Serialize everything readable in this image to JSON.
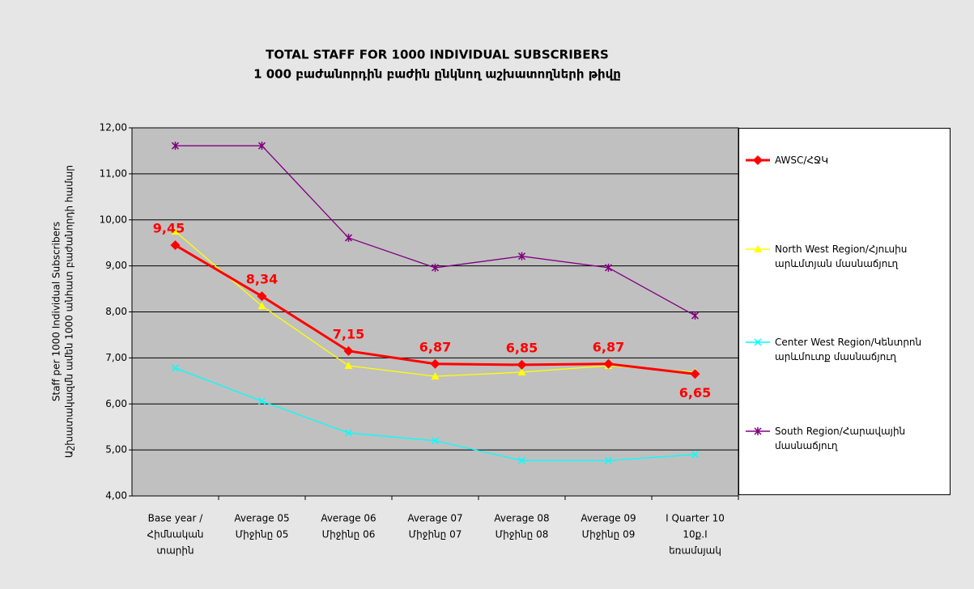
{
  "chart_data": {
    "type": "line",
    "title": [
      "TOTAL STAFF FOR 1000 INDIVIDUAL SUBSCRIBERS",
      "1 000 բաժանորդին բաժին ընկնող աշխատողների թիվը"
    ],
    "y_label": [
      "Staff per 1000 Individual Subscribers",
      "Աշխատակազմն ամեն 1000 անհատ բաժանորդի համար"
    ],
    "categories": [
      [
        "Base year /",
        "Հիմնական",
        "տարին"
      ],
      [
        "Average 05",
        "Միջինը 05"
      ],
      [
        "Average 06",
        "Միջինը 06"
      ],
      [
        "Average 07",
        "Միջինը 07"
      ],
      [
        "Average 08",
        "Միջինը 08"
      ],
      [
        "Average 09",
        "Միջինը 09"
      ],
      [
        "I Quarter 10",
        "10ք.I",
        "եռամսյակ"
      ]
    ],
    "series": [
      {
        "name": "AWSC/ՀՋԿ",
        "color": "#ff0000",
        "marker": "diamond",
        "values": [
          9.45,
          8.34,
          7.15,
          6.87,
          6.85,
          6.87,
          6.65
        ],
        "value_labels": [
          "9,45",
          "8,34",
          "7,15",
          "6,87",
          "6,85",
          "6,87",
          "6,65"
        ]
      },
      {
        "name": "North West Region/Հյուսիս արևմտյան մասնաճյուղ",
        "color": "#ffff00",
        "marker": "triangle",
        "values": [
          9.75,
          8.13,
          6.83,
          6.6,
          6.69,
          6.83,
          6.69
        ]
      },
      {
        "name": "Center West Region/Կենտրոն արևմուտք մասնաճյուղ",
        "color": "#00ffff",
        "marker": "x",
        "values": [
          6.78,
          6.06,
          5.37,
          5.2,
          4.77,
          4.77,
          4.9
        ]
      },
      {
        "name": "South Region/Հարավային մասնաճյուղ",
        "color": "#800080",
        "marker": "star",
        "values": [
          11.61,
          11.61,
          9.61,
          8.96,
          9.21,
          8.96,
          7.92
        ]
      }
    ],
    "ylim": [
      4,
      12
    ],
    "yticks": [
      {
        "value": 4,
        "label": "4,00"
      },
      {
        "value": 5,
        "label": "5,00"
      },
      {
        "value": 6,
        "label": "6,00"
      },
      {
        "value": 7,
        "label": "7,00"
      },
      {
        "value": 8,
        "label": "8,00"
      },
      {
        "value": 9,
        "label": "9,00"
      },
      {
        "value": 10,
        "label": "10,00"
      },
      {
        "value": 11,
        "label": "11,00"
      },
      {
        "value": 12,
        "label": "12,00"
      }
    ],
    "grid": true,
    "legend": "right"
  }
}
